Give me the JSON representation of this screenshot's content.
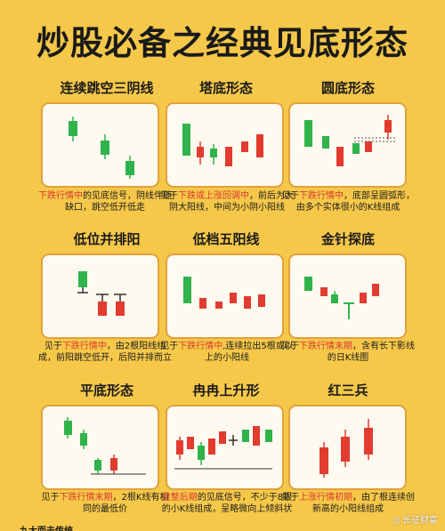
{
  "title": "炒股必备之经典见底形态",
  "colors": {
    "background": "#f6c84a",
    "up": "#e23b2f",
    "down": "#2fb34a",
    "highlight": "#d93a2b",
    "panel_border": "#e0a23b"
  },
  "patterns": [
    {
      "title": "连续跳空三阴线",
      "desc_pre": "",
      "desc_hl": "下跌行情中",
      "desc_post": "的见底信号，阴线伴随缺口，跳空低开低走"
    },
    {
      "title": "塔底形态",
      "desc_pre": "见于",
      "desc_hl": "下跌或上涨回调中",
      "desc_post": "，前后为大阴大阳线，中间为小阴小阳线"
    },
    {
      "title": "圆底形态",
      "desc_pre": "见于",
      "desc_hl": "下跌行情中",
      "desc_post": "，底部呈圆弧形，由多个实体很小的K线组成"
    },
    {
      "title": "低位并排阳",
      "desc_pre": "见于",
      "desc_hl": "下跌行情中",
      "desc_post": "，由2根阳线组成，前阳跳空低开，后阳并排而立"
    },
    {
      "title": "低档五阳线",
      "desc_pre": "见于",
      "desc_hl": "下跌行情中",
      "desc_post": ",连续拉出5根或以上的小阳线"
    },
    {
      "title": "金针探底",
      "desc_pre": "见于",
      "desc_hl": "下跌行情末期",
      "desc_post": "，含有长下影线的日K线图"
    },
    {
      "title": "平底形态",
      "desc_pre": "见于",
      "desc_hl": "下跌行情末期",
      "desc_post": "，2根K线有相同的最低价"
    },
    {
      "title": "冉冉上升形",
      "desc_pre": "",
      "desc_hl": "盘整后期",
      "desc_post": "的见底信号，不少于8根的小K线组成，呈略微向上倾斜状"
    },
    {
      "title": "红三兵",
      "desc_pre": "见于",
      "desc_hl": "上涨行情初期",
      "desc_post": "，由了根连续创新高的小阳线组成"
    }
  ],
  "footer": {
    "partial_text": "九大而去传统",
    "watermark": "长征财富"
  }
}
